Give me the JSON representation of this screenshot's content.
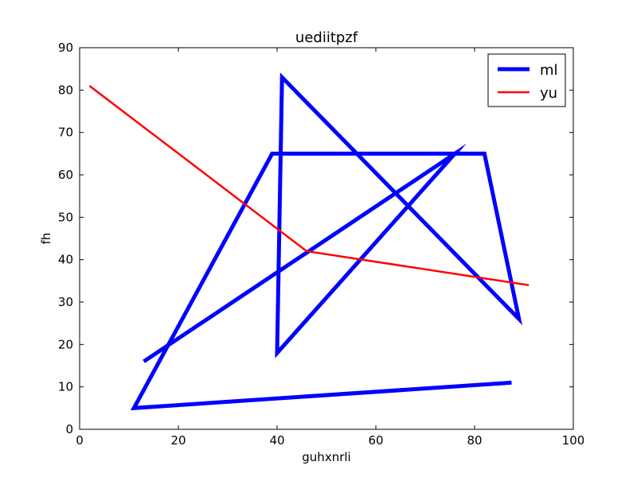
{
  "chart_data": {
    "type": "line",
    "title": "uediitpzf",
    "xlabel": "guhxnrli",
    "ylabel": "fh",
    "xlim": [
      0,
      100
    ],
    "ylim": [
      0,
      90
    ],
    "xticks": [
      0,
      20,
      40,
      60,
      80,
      100
    ],
    "yticks": [
      0,
      10,
      20,
      30,
      40,
      50,
      60,
      70,
      80,
      90
    ],
    "grid": false,
    "legend_position": "top-right",
    "series": [
      {
        "name": "ml",
        "color": "#0000ff",
        "x": [
          87.5,
          11,
          39,
          82,
          89,
          41,
          40,
          76,
          13
        ],
        "y": [
          11,
          5,
          65,
          65,
          26,
          83,
          18,
          65,
          16
        ]
      },
      {
        "name": "yu",
        "color": "#ff0000",
        "x": [
          2,
          46,
          91
        ],
        "y": [
          81,
          42,
          34
        ]
      }
    ]
  }
}
